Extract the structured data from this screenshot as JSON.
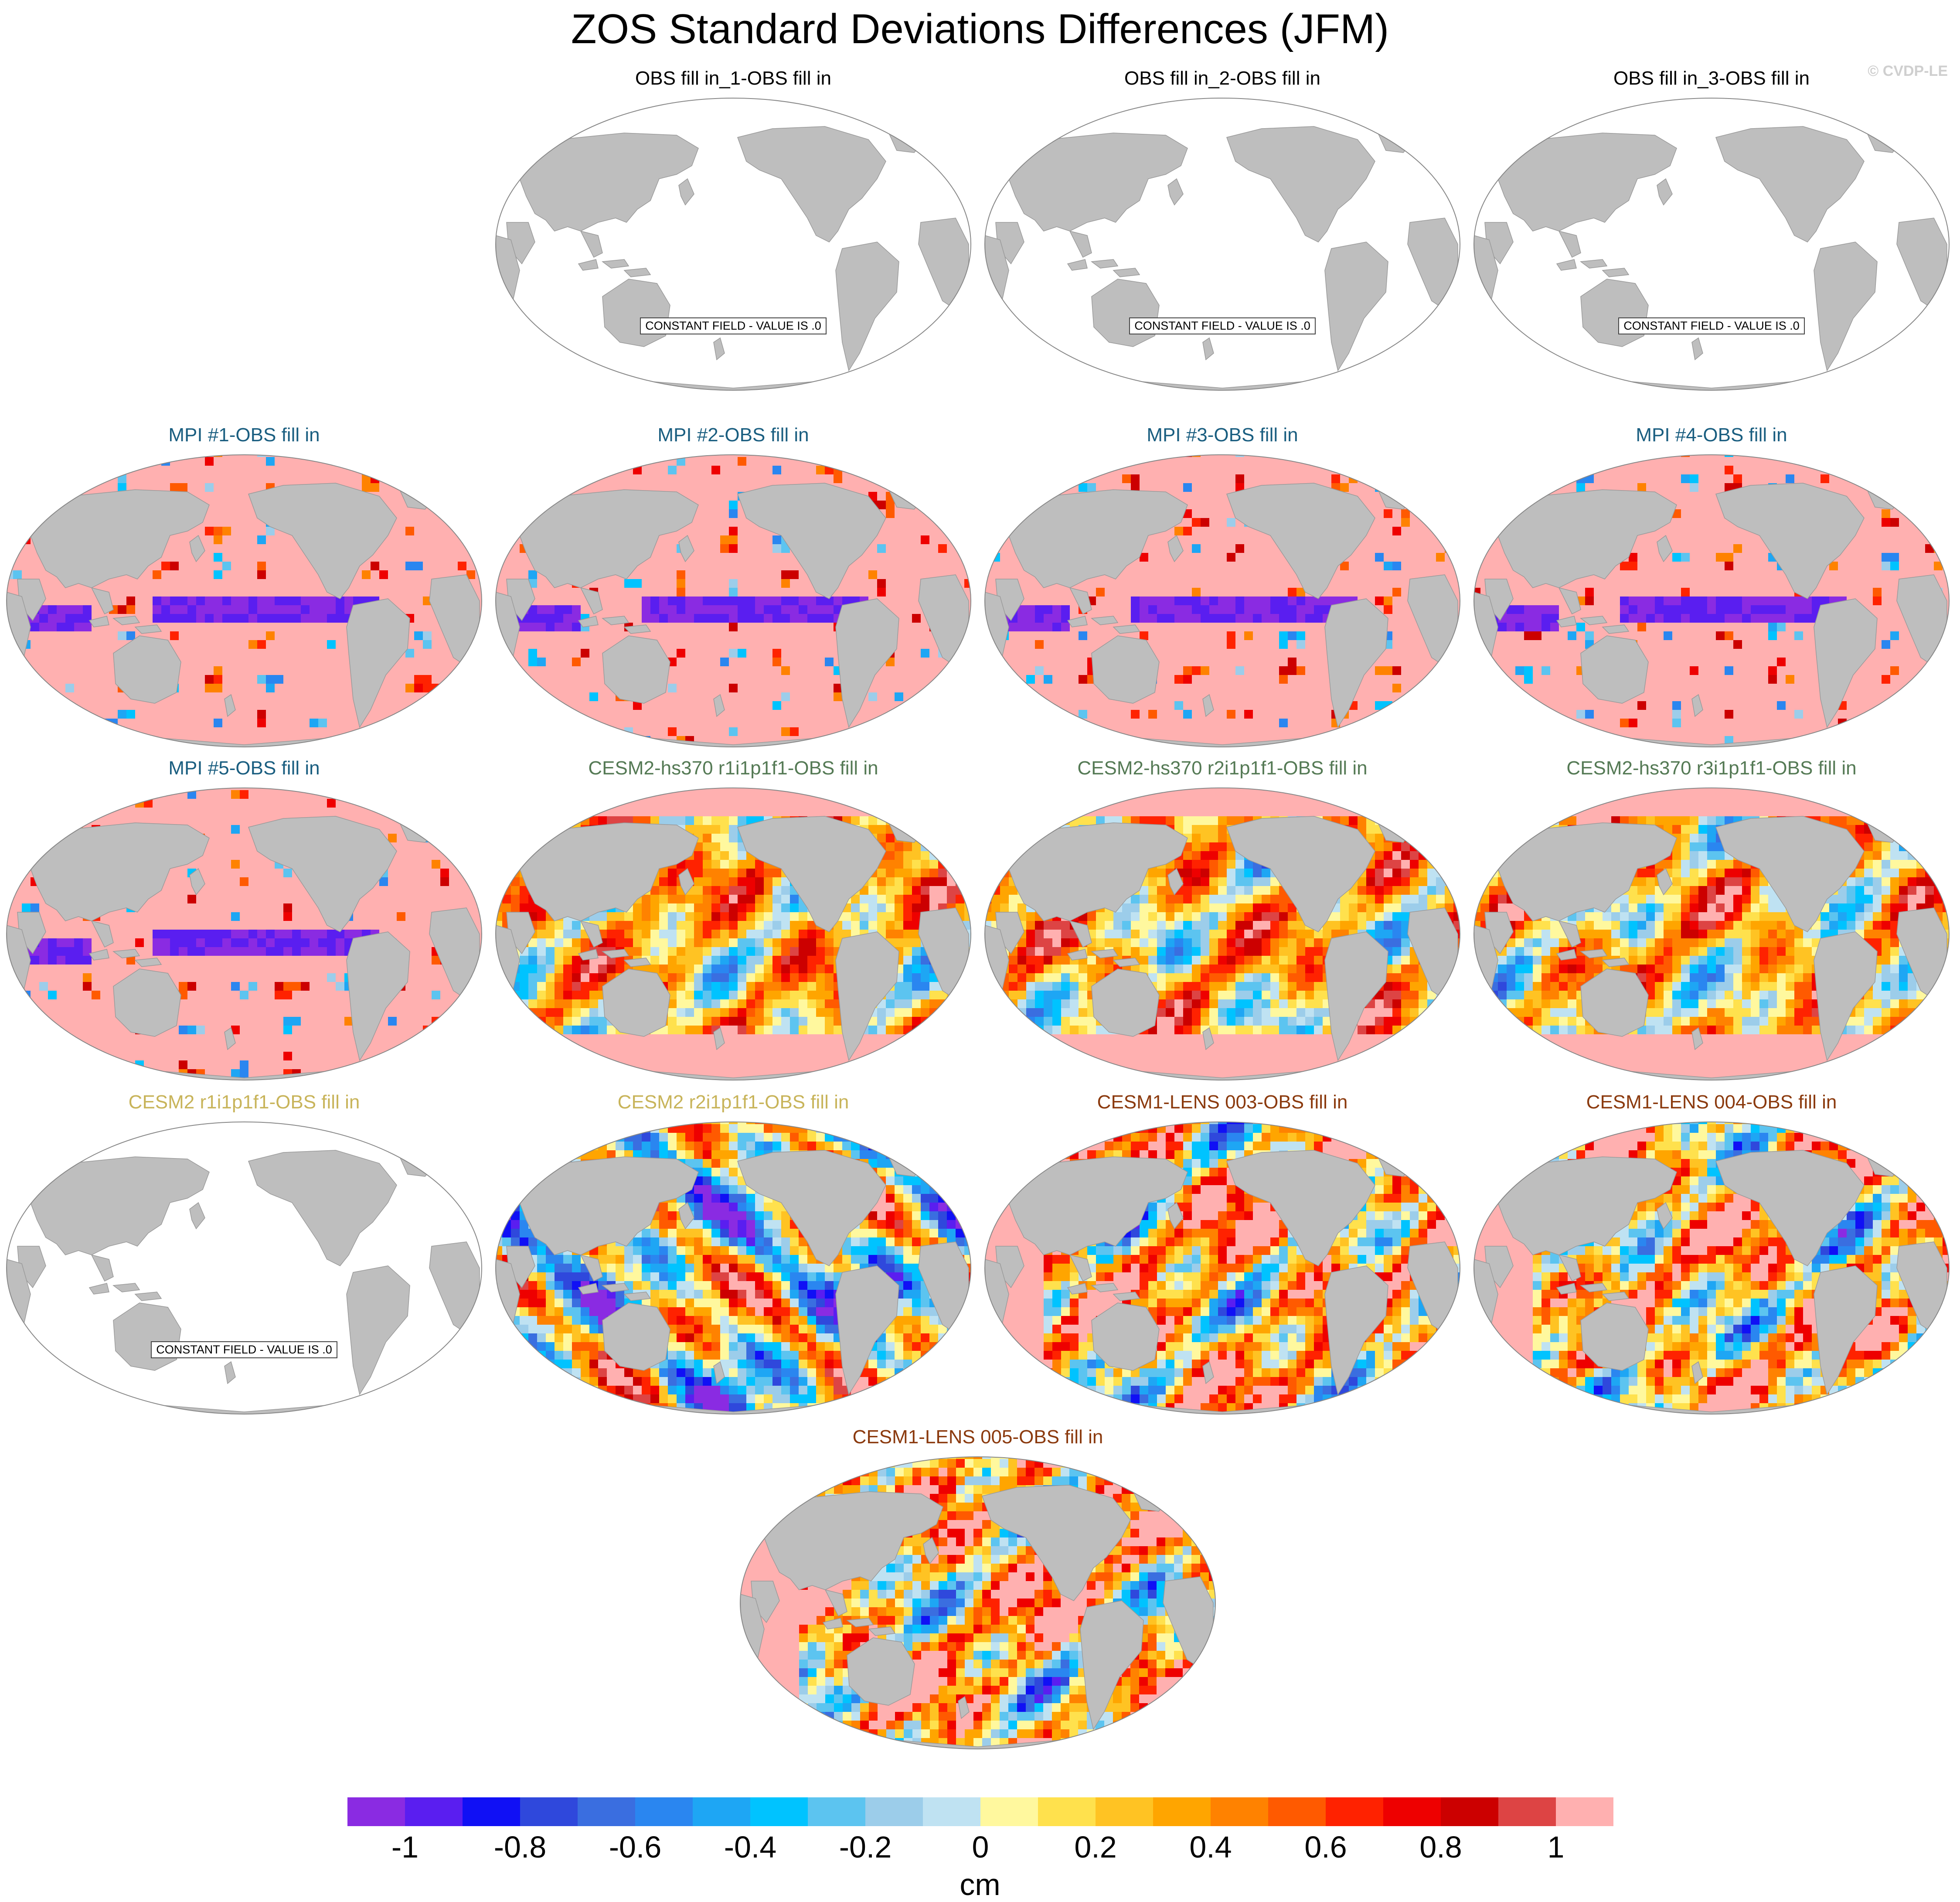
{
  "title": "ZOS Standard Deviations Differences (JFM)",
  "credit": "© CVDP-LE",
  "constant_label": "CONSTANT FIELD - VALUE IS .0",
  "colors": {
    "land": "#bebebe",
    "ocean_constant": "#ffffff",
    "title_obs": "#000000",
    "title_mpi": "#1a5e80",
    "title_cesm2_hs370": "#557a55",
    "title_cesm2": "#c8b45a",
    "title_cesm1_lens": "#8b3a0e"
  },
  "panels": [
    {
      "id": "obs1",
      "title": "OBS fill in_1-OBS fill in",
      "group": "title_obs",
      "constant": true
    },
    {
      "id": "obs2",
      "title": "OBS fill in_2-OBS fill in",
      "group": "title_obs",
      "constant": true
    },
    {
      "id": "obs3",
      "title": "OBS fill in_3-OBS fill in",
      "group": "title_obs",
      "constant": true
    },
    {
      "id": "mpi1",
      "title": "MPI #1-OBS fill in",
      "group": "title_mpi",
      "constant": false
    },
    {
      "id": "mpi2",
      "title": "MPI #2-OBS fill in",
      "group": "title_mpi",
      "constant": false
    },
    {
      "id": "mpi3",
      "title": "MPI #3-OBS fill in",
      "group": "title_mpi",
      "constant": false
    },
    {
      "id": "mpi4",
      "title": "MPI #4-OBS fill in",
      "group": "title_mpi",
      "constant": false
    },
    {
      "id": "mpi5",
      "title": "MPI #5-OBS fill in",
      "group": "title_mpi",
      "constant": false
    },
    {
      "id": "hs1",
      "title": "CESM2-hs370 r1i1p1f1-OBS fill in",
      "group": "title_cesm2_hs370",
      "constant": false
    },
    {
      "id": "hs2",
      "title": "CESM2-hs370 r2i1p1f1-OBS fill in",
      "group": "title_cesm2_hs370",
      "constant": false
    },
    {
      "id": "hs3",
      "title": "CESM2-hs370 r3i1p1f1-OBS fill in",
      "group": "title_cesm2_hs370",
      "constant": false
    },
    {
      "id": "c2r1",
      "title": "CESM2 r1i1p1f1-OBS fill in",
      "group": "title_cesm2",
      "constant": true
    },
    {
      "id": "c2r2",
      "title": "CESM2 r2i1p1f1-OBS fill in",
      "group": "title_cesm2",
      "constant": false
    },
    {
      "id": "lens3",
      "title": "CESM1-LENS 003-OBS fill in",
      "group": "title_cesm1_lens",
      "constant": false
    },
    {
      "id": "lens4",
      "title": "CESM1-LENS 004-OBS fill in",
      "group": "title_cesm1_lens",
      "constant": false
    },
    {
      "id": "lens5",
      "title": "CESM1-LENS 005-OBS fill in",
      "group": "title_cesm1_lens",
      "constant": false
    }
  ],
  "colorbar": {
    "units": "cm",
    "colors": [
      "#8a2be2",
      "#5a1ef0",
      "#1010f5",
      "#2f48dc",
      "#3a6ee0",
      "#2a86f0",
      "#1ea6f4",
      "#00c3ff",
      "#5cc4f0",
      "#9ccdea",
      "#bfe2f2",
      "#fff89e",
      "#ffe14d",
      "#ffc323",
      "#ffa500",
      "#ff8200",
      "#ff5a00",
      "#ff2200",
      "#ee0000",
      "#cc0000",
      "#dd4444",
      "#ffb0b0"
    ],
    "tick_values": [
      -1,
      -0.8,
      -0.6,
      -0.4,
      -0.2,
      0,
      0.2,
      0.4,
      0.6,
      0.8,
      1
    ],
    "tick_labels": [
      "-1",
      "-0.8",
      "-0.6",
      "-0.4",
      "-0.2",
      "0",
      "0.2",
      "0.4",
      "0.6",
      "0.8",
      "1"
    ],
    "min": -1.1,
    "max": 1.1
  }
}
